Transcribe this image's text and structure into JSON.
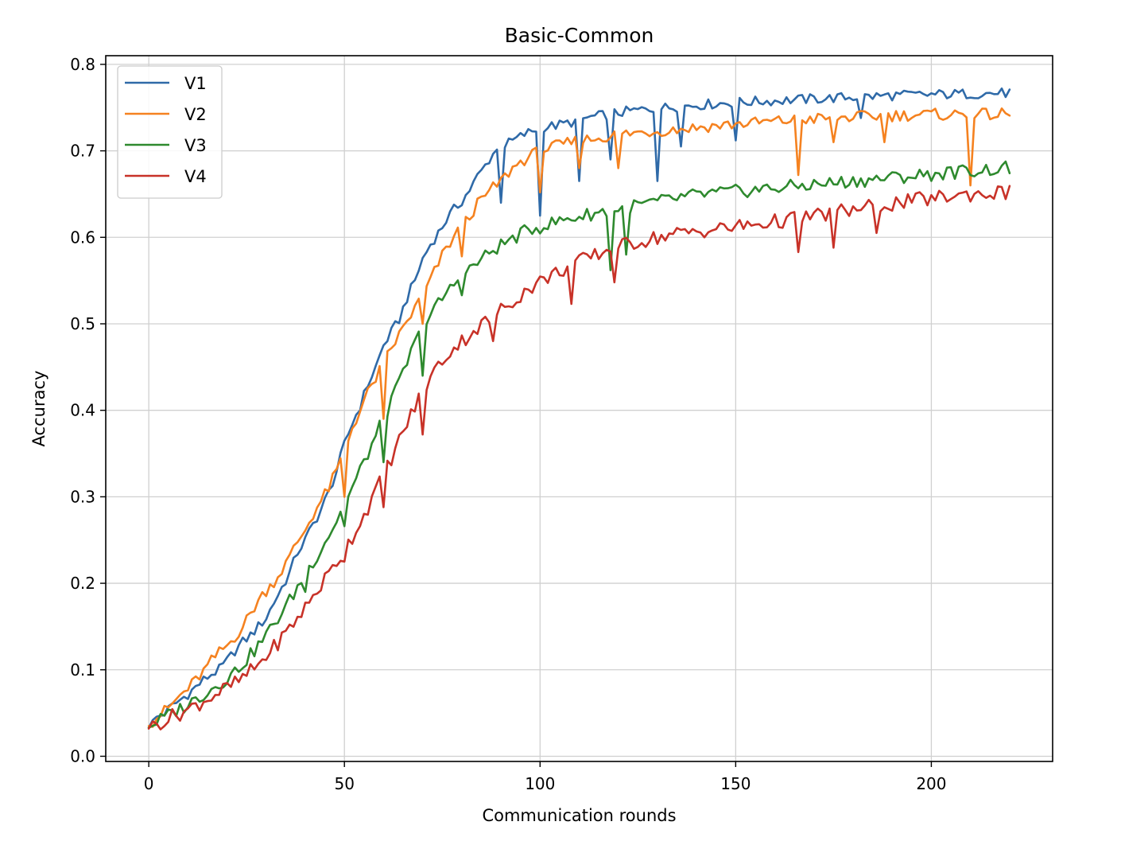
{
  "chart_data": {
    "type": "line",
    "title": "Basic-Common",
    "xlabel": "Communication rounds",
    "ylabel": "Accuracy",
    "xlim": [
      -11,
      231
    ],
    "ylim": [
      -0.006,
      0.81
    ],
    "xticks": [
      0,
      50,
      100,
      150,
      200
    ],
    "yticks": [
      0.0,
      0.1,
      0.2,
      0.3,
      0.4,
      0.5,
      0.6,
      0.7,
      0.8
    ],
    "x_start": 0,
    "x_step": 1,
    "grid": true,
    "legend_position": "top-left",
    "series": [
      {
        "name": "V1",
        "color": "#2f6aa8",
        "anchors": [
          [
            0,
            0.033
          ],
          [
            2,
            0.045
          ],
          [
            4,
            0.05
          ],
          [
            6,
            0.058
          ],
          [
            8,
            0.065
          ],
          [
            10,
            0.072
          ],
          [
            12,
            0.08
          ],
          [
            14,
            0.088
          ],
          [
            16,
            0.095
          ],
          [
            18,
            0.1
          ],
          [
            20,
            0.11
          ],
          [
            22,
            0.122
          ],
          [
            24,
            0.132
          ],
          [
            26,
            0.14
          ],
          [
            28,
            0.15
          ],
          [
            30,
            0.16
          ],
          [
            32,
            0.178
          ],
          [
            34,
            0.195
          ],
          [
            36,
            0.212
          ],
          [
            38,
            0.236
          ],
          [
            40,
            0.25
          ],
          [
            42,
            0.268
          ],
          [
            44,
            0.285
          ],
          [
            46,
            0.305
          ],
          [
            48,
            0.33
          ],
          [
            50,
            0.36
          ],
          [
            52,
            0.385
          ],
          [
            54,
            0.405
          ],
          [
            56,
            0.43
          ],
          [
            58,
            0.45
          ],
          [
            60,
            0.475
          ],
          [
            62,
            0.49
          ],
          [
            64,
            0.505
          ],
          [
            66,
            0.53
          ],
          [
            68,
            0.55
          ],
          [
            70,
            0.575
          ],
          [
            72,
            0.592
          ],
          [
            74,
            0.605
          ],
          [
            76,
            0.62
          ],
          [
            78,
            0.632
          ],
          [
            80,
            0.642
          ],
          [
            82,
            0.655
          ],
          [
            84,
            0.67
          ],
          [
            86,
            0.683
          ],
          [
            88,
            0.697
          ],
          [
            90,
            0.704
          ],
          [
            92,
            0.709
          ],
          [
            94,
            0.714
          ],
          [
            96,
            0.719
          ],
          [
            98,
            0.723
          ],
          [
            100,
            0.727
          ],
          [
            104,
            0.729
          ],
          [
            108,
            0.733
          ],
          [
            112,
            0.738
          ],
          [
            116,
            0.741
          ],
          [
            120,
            0.744
          ],
          [
            125,
            0.747
          ],
          [
            130,
            0.749
          ],
          [
            135,
            0.751
          ],
          [
            140,
            0.753
          ],
          [
            150,
            0.756
          ],
          [
            160,
            0.758
          ],
          [
            170,
            0.76
          ],
          [
            180,
            0.762
          ],
          [
            190,
            0.764
          ],
          [
            200,
            0.765
          ],
          [
            210,
            0.766
          ],
          [
            220,
            0.767
          ]
        ],
        "noise": 0.006,
        "dips": [
          [
            90,
            0.64
          ],
          [
            100,
            0.625
          ],
          [
            110,
            0.665
          ],
          [
            118,
            0.69
          ],
          [
            130,
            0.665
          ],
          [
            136,
            0.705
          ],
          [
            150,
            0.712
          ],
          [
            182,
            0.738
          ]
        ]
      },
      {
        "name": "V2",
        "color": "#f58220",
        "anchors": [
          [
            0,
            0.035
          ],
          [
            2,
            0.045
          ],
          [
            4,
            0.052
          ],
          [
            6,
            0.06
          ],
          [
            8,
            0.07
          ],
          [
            10,
            0.078
          ],
          [
            12,
            0.088
          ],
          [
            14,
            0.098
          ],
          [
            16,
            0.11
          ],
          [
            18,
            0.12
          ],
          [
            20,
            0.128
          ],
          [
            22,
            0.138
          ],
          [
            24,
            0.15
          ],
          [
            26,
            0.165
          ],
          [
            28,
            0.18
          ],
          [
            30,
            0.192
          ],
          [
            32,
            0.202
          ],
          [
            34,
            0.215
          ],
          [
            36,
            0.23
          ],
          [
            38,
            0.248
          ],
          [
            40,
            0.262
          ],
          [
            42,
            0.28
          ],
          [
            44,
            0.295
          ],
          [
            46,
            0.31
          ],
          [
            48,
            0.33
          ],
          [
            50,
            0.352
          ],
          [
            52,
            0.38
          ],
          [
            54,
            0.4
          ],
          [
            56,
            0.42
          ],
          [
            58,
            0.437
          ],
          [
            60,
            0.454
          ],
          [
            62,
            0.472
          ],
          [
            64,
            0.487
          ],
          [
            66,
            0.503
          ],
          [
            68,
            0.518
          ],
          [
            70,
            0.532
          ],
          [
            72,
            0.55
          ],
          [
            74,
            0.57
          ],
          [
            76,
            0.587
          ],
          [
            78,
            0.6
          ],
          [
            80,
            0.612
          ],
          [
            82,
            0.625
          ],
          [
            84,
            0.638
          ],
          [
            86,
            0.648
          ],
          [
            88,
            0.657
          ],
          [
            90,
            0.665
          ],
          [
            92,
            0.675
          ],
          [
            94,
            0.684
          ],
          [
            96,
            0.69
          ],
          [
            98,
            0.695
          ],
          [
            100,
            0.7
          ],
          [
            104,
            0.705
          ],
          [
            108,
            0.71
          ],
          [
            112,
            0.713
          ],
          [
            116,
            0.716
          ],
          [
            120,
            0.719
          ],
          [
            125,
            0.721
          ],
          [
            130,
            0.723
          ],
          [
            140,
            0.727
          ],
          [
            150,
            0.731
          ],
          [
            160,
            0.734
          ],
          [
            170,
            0.737
          ],
          [
            180,
            0.739
          ],
          [
            190,
            0.741
          ],
          [
            200,
            0.742
          ],
          [
            210,
            0.742
          ],
          [
            220,
            0.742
          ]
        ],
        "noise": 0.007,
        "dips": [
          [
            50,
            0.3
          ],
          [
            60,
            0.39
          ],
          [
            70,
            0.5
          ],
          [
            80,
            0.578
          ],
          [
            100,
            0.652
          ],
          [
            110,
            0.68
          ],
          [
            120,
            0.68
          ],
          [
            166,
            0.672
          ],
          [
            175,
            0.71
          ],
          [
            188,
            0.71
          ],
          [
            210,
            0.66
          ]
        ]
      },
      {
        "name": "V3",
        "color": "#2e8a2e",
        "anchors": [
          [
            0,
            0.033
          ],
          [
            2,
            0.04
          ],
          [
            4,
            0.045
          ],
          [
            6,
            0.05
          ],
          [
            8,
            0.055
          ],
          [
            10,
            0.06
          ],
          [
            12,
            0.066
          ],
          [
            14,
            0.072
          ],
          [
            16,
            0.078
          ],
          [
            18,
            0.084
          ],
          [
            20,
            0.09
          ],
          [
            22,
            0.098
          ],
          [
            24,
            0.107
          ],
          [
            26,
            0.117
          ],
          [
            28,
            0.128
          ],
          [
            30,
            0.14
          ],
          [
            32,
            0.153
          ],
          [
            34,
            0.166
          ],
          [
            36,
            0.18
          ],
          [
            38,
            0.195
          ],
          [
            40,
            0.21
          ],
          [
            42,
            0.225
          ],
          [
            44,
            0.24
          ],
          [
            46,
            0.256
          ],
          [
            48,
            0.272
          ],
          [
            50,
            0.29
          ],
          [
            52,
            0.31
          ],
          [
            54,
            0.33
          ],
          [
            56,
            0.35
          ],
          [
            58,
            0.37
          ],
          [
            60,
            0.39
          ],
          [
            62,
            0.41
          ],
          [
            64,
            0.432
          ],
          [
            66,
            0.455
          ],
          [
            68,
            0.477
          ],
          [
            70,
            0.495
          ],
          [
            72,
            0.51
          ],
          [
            74,
            0.523
          ],
          [
            76,
            0.535
          ],
          [
            78,
            0.546
          ],
          [
            80,
            0.555
          ],
          [
            82,
            0.563
          ],
          [
            84,
            0.571
          ],
          [
            86,
            0.578
          ],
          [
            88,
            0.585
          ],
          [
            90,
            0.591
          ],
          [
            92,
            0.596
          ],
          [
            94,
            0.601
          ],
          [
            96,
            0.606
          ],
          [
            98,
            0.61
          ],
          [
            100,
            0.612
          ],
          [
            105,
            0.619
          ],
          [
            110,
            0.624
          ],
          [
            115,
            0.629
          ],
          [
            120,
            0.633
          ],
          [
            125,
            0.637
          ],
          [
            130,
            0.641
          ],
          [
            135,
            0.645
          ],
          [
            140,
            0.649
          ],
          [
            150,
            0.653
          ],
          [
            160,
            0.657
          ],
          [
            170,
            0.661
          ],
          [
            180,
            0.665
          ],
          [
            190,
            0.669
          ],
          [
            200,
            0.673
          ],
          [
            210,
            0.677
          ],
          [
            220,
            0.68
          ]
        ],
        "noise": 0.008,
        "dips": [
          [
            40,
            0.19
          ],
          [
            50,
            0.266
          ],
          [
            60,
            0.34
          ],
          [
            70,
            0.44
          ],
          [
            80,
            0.533
          ],
          [
            118,
            0.562
          ],
          [
            122,
            0.58
          ]
        ]
      },
      {
        "name": "V4",
        "color": "#c83228",
        "anchors": [
          [
            0,
            0.032
          ],
          [
            2,
            0.037
          ],
          [
            4,
            0.042
          ],
          [
            6,
            0.046
          ],
          [
            8,
            0.05
          ],
          [
            10,
            0.054
          ],
          [
            12,
            0.059
          ],
          [
            14,
            0.064
          ],
          [
            16,
            0.069
          ],
          [
            18,
            0.074
          ],
          [
            20,
            0.079
          ],
          [
            22,
            0.084
          ],
          [
            24,
            0.09
          ],
          [
            26,
            0.098
          ],
          [
            28,
            0.106
          ],
          [
            30,
            0.116
          ],
          [
            32,
            0.126
          ],
          [
            34,
            0.137
          ],
          [
            36,
            0.148
          ],
          [
            38,
            0.16
          ],
          [
            40,
            0.172
          ],
          [
            42,
            0.185
          ],
          [
            44,
            0.198
          ],
          [
            46,
            0.211
          ],
          [
            48,
            0.224
          ],
          [
            50,
            0.238
          ],
          [
            52,
            0.254
          ],
          [
            54,
            0.27
          ],
          [
            56,
            0.288
          ],
          [
            58,
            0.306
          ],
          [
            60,
            0.325
          ],
          [
            62,
            0.345
          ],
          [
            64,
            0.365
          ],
          [
            66,
            0.385
          ],
          [
            68,
            0.404
          ],
          [
            70,
            0.422
          ],
          [
            72,
            0.438
          ],
          [
            74,
            0.452
          ],
          [
            76,
            0.463
          ],
          [
            78,
            0.472
          ],
          [
            80,
            0.48
          ],
          [
            82,
            0.488
          ],
          [
            84,
            0.495
          ],
          [
            86,
            0.502
          ],
          [
            88,
            0.509
          ],
          [
            90,
            0.516
          ],
          [
            92,
            0.523
          ],
          [
            94,
            0.53
          ],
          [
            96,
            0.537
          ],
          [
            98,
            0.543
          ],
          [
            100,
            0.549
          ],
          [
            105,
            0.561
          ],
          [
            110,
            0.572
          ],
          [
            115,
            0.581
          ],
          [
            120,
            0.589
          ],
          [
            125,
            0.595
          ],
          [
            130,
            0.6
          ],
          [
            135,
            0.604
          ],
          [
            140,
            0.607
          ],
          [
            150,
            0.612
          ],
          [
            160,
            0.618
          ],
          [
            170,
            0.625
          ],
          [
            180,
            0.632
          ],
          [
            190,
            0.639
          ],
          [
            200,
            0.645
          ],
          [
            210,
            0.65
          ],
          [
            220,
            0.652
          ]
        ],
        "noise": 0.009,
        "dips": [
          [
            50,
            0.225
          ],
          [
            60,
            0.288
          ],
          [
            70,
            0.372
          ],
          [
            88,
            0.48
          ],
          [
            108,
            0.523
          ],
          [
            119,
            0.548
          ],
          [
            166,
            0.583
          ],
          [
            175,
            0.588
          ],
          [
            186,
            0.605
          ]
        ]
      }
    ]
  }
}
